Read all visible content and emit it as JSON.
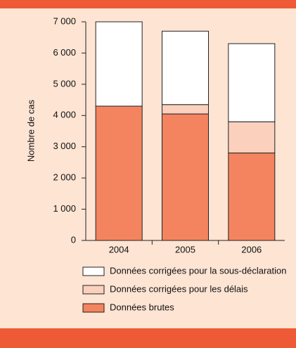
{
  "chart_data": {
    "type": "stacked_bar",
    "y_label": "Nombre de cas",
    "categories": [
      "2004",
      "2005",
      "2006"
    ],
    "series": [
      {
        "name": "Données brutes",
        "color": "#f4845f",
        "values": [
          4300,
          4050,
          2800
        ]
      },
      {
        "name": "Données corrigées pour les délais",
        "color": "#fbd0bd",
        "values": [
          0,
          300,
          1000
        ]
      },
      {
        "name": "Données corrigées pour la sous-déclaration",
        "color": "#ffffff",
        "values": [
          2700,
          2350,
          2500
        ]
      }
    ],
    "ylim": [
      0,
      7000
    ],
    "yticks": [
      0,
      {
        "value": 1000,
        "label": "1 000"
      },
      {
        "value": 2000,
        "label": "2 000"
      },
      {
        "value": 3000,
        "label": "3 000"
      },
      {
        "value": 4000,
        "label": "4 000"
      },
      {
        "value": 5000,
        "label": "5 000"
      },
      {
        "value": 6000,
        "label": "6 000"
      },
      {
        "value": 7000,
        "label": "7 000"
      }
    ]
  }
}
